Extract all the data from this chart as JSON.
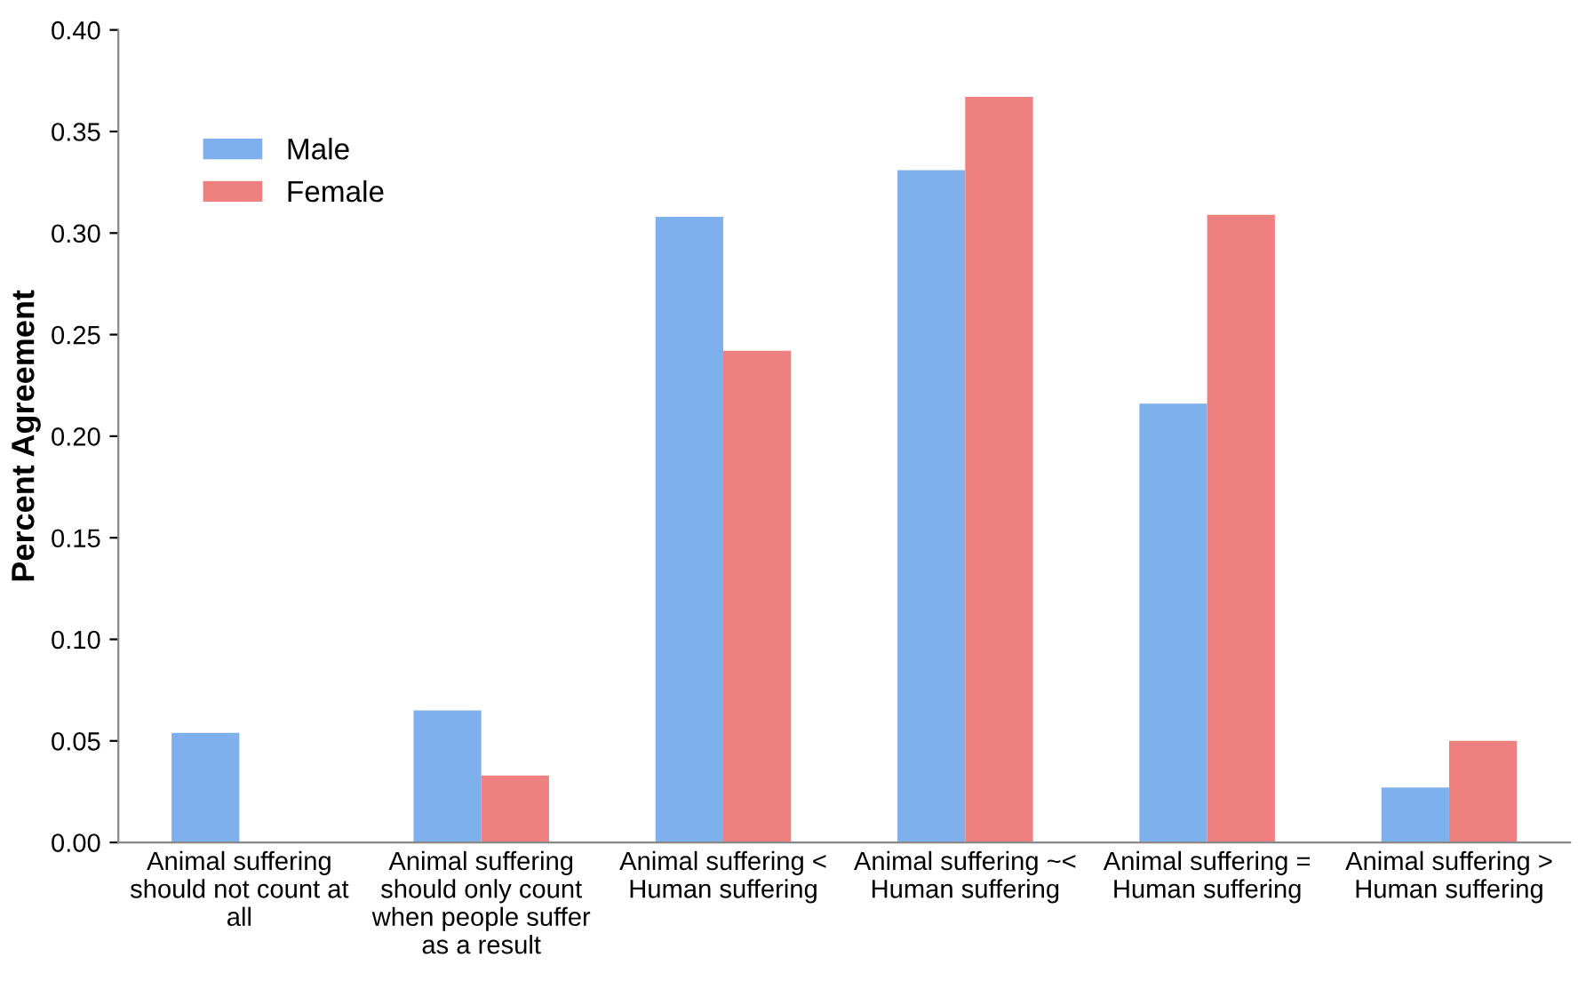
{
  "chart_data": {
    "type": "bar",
    "ylabel": "Percent Agreement",
    "categories": [
      "Animal suffering\nshould not count at\nall",
      "Animal suffering\nshould only count\nwhen people suffer\nas a result",
      "Animal suffering <\nHuman suffering",
      "Animal suffering ~<\nHuman suffering",
      "Animal suffering =\nHuman suffering",
      "Animal suffering >\nHuman suffering"
    ],
    "series": [
      {
        "name": "Male",
        "color": "#7fb0ee",
        "values": [
          0.054,
          0.065,
          0.308,
          0.331,
          0.216,
          0.027
        ]
      },
      {
        "name": "Female",
        "color": "#ee8080",
        "values": [
          0,
          0.033,
          0.242,
          0.367,
          0.309,
          0.05
        ]
      }
    ],
    "ylim": [
      0,
      0.4
    ],
    "yticks": [
      {
        "value": 0,
        "label": "0.00"
      },
      {
        "value": 0.05,
        "label": "0.05"
      },
      {
        "value": 0.1,
        "label": "0.10"
      },
      {
        "value": 0.15,
        "label": "0.15"
      },
      {
        "value": 0.2,
        "label": "0.20"
      },
      {
        "value": 0.25,
        "label": "0.25"
      },
      {
        "value": 0.3,
        "label": "0.30"
      },
      {
        "value": 0.35,
        "label": "0.35"
      },
      {
        "value": 0.4,
        "label": "0.40"
      }
    ],
    "grid": false,
    "legend": "top left"
  }
}
